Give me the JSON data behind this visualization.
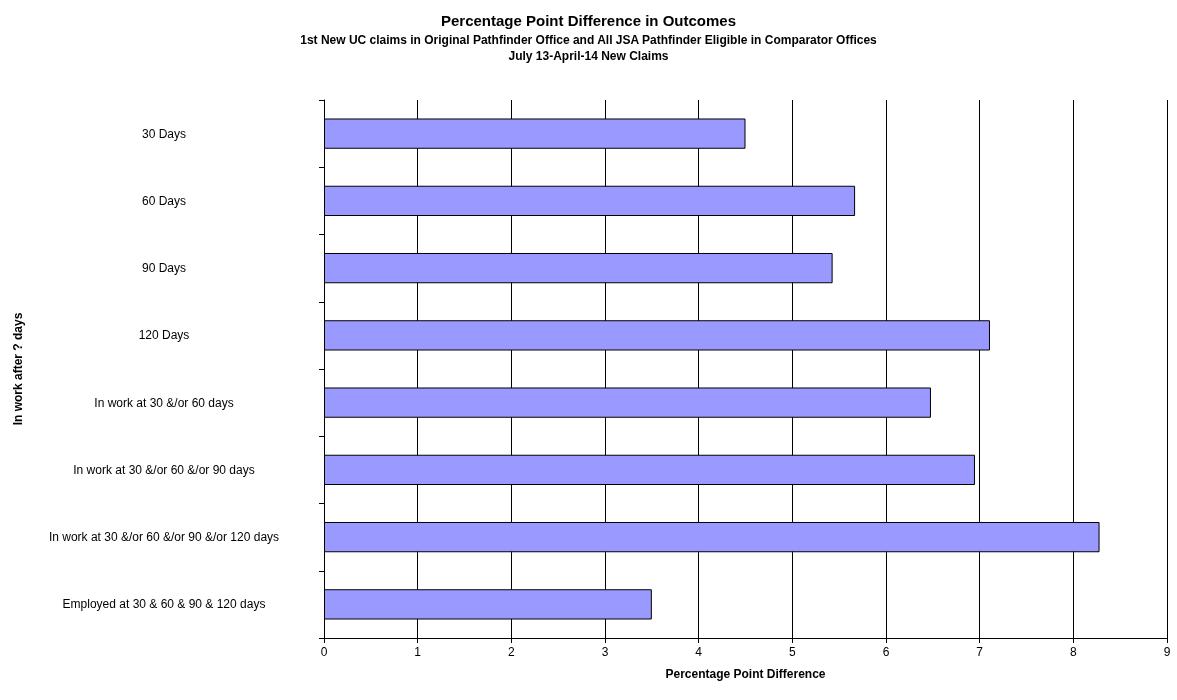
{
  "chart_data": {
    "type": "bar",
    "orientation": "horizontal",
    "title": "Percentage Point Difference in Outcomes",
    "subtitle": "1st New UC claims in Original Pathfinder Office and All JSA Pathfinder Eligible in Comparator Offices\nJuly 13-April-14 New Claims",
    "xlabel": "Percentage Point Difference",
    "ylabel": "In work after ? days",
    "categories": [
      "30 Days",
      "60 Days",
      "90 Days",
      "120 Days",
      "In work at 30 &/or 60 days",
      "In work at 30 &/or 60 &/or 90 days",
      "In work at 30 &/or 60 &/or 90 &/or 120 days",
      "Employed at 30 & 60 & 90 & 120 days"
    ],
    "values": [
      4.5,
      5.67,
      5.43,
      7.11,
      6.48,
      6.95,
      8.28,
      3.5
    ],
    "color": "#9999ff",
    "xlim": [
      0,
      9
    ],
    "xticks": [
      0,
      1,
      2,
      3,
      4,
      5,
      6,
      7,
      8,
      9
    ],
    "grid": "x"
  }
}
